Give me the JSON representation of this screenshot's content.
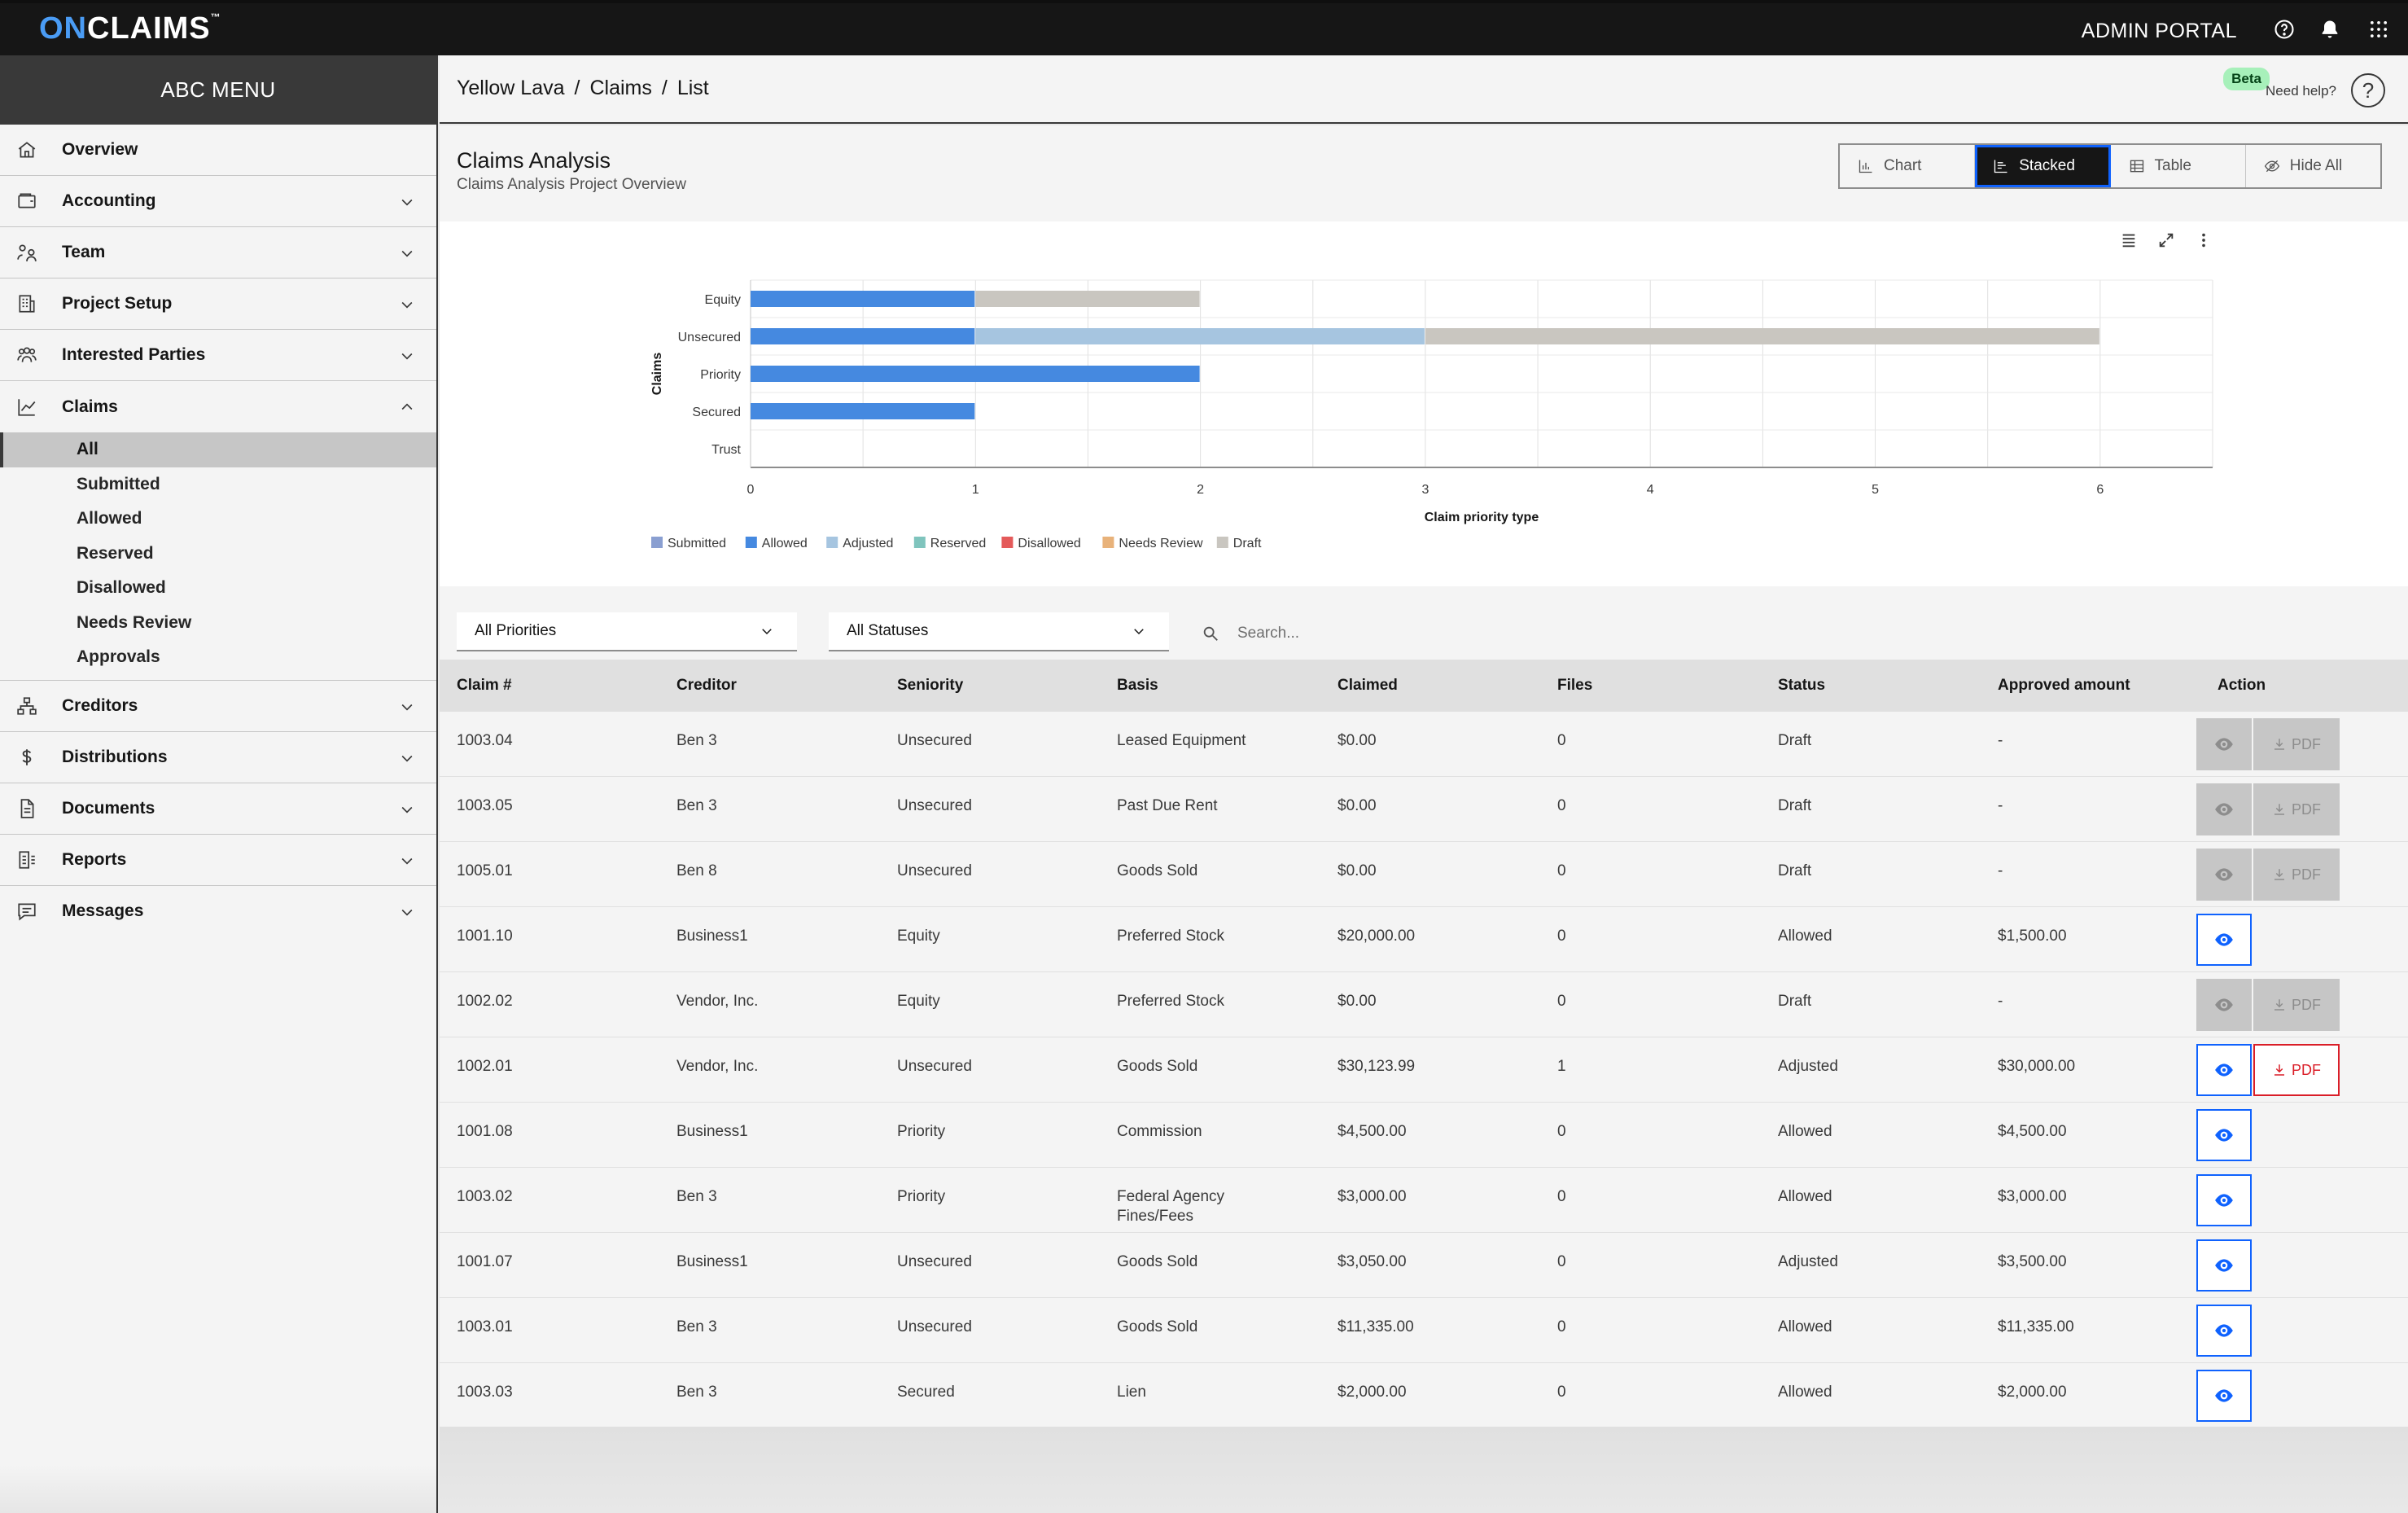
{
  "topbar": {
    "logo_on": "ON",
    "logo_rest": "CLAIMS",
    "logo_tm": "™",
    "portal_label": "ADMIN PORTAL",
    "icons": [
      "help-icon",
      "notification-icon",
      "app-switcher-icon"
    ]
  },
  "sidebar": {
    "title": "ABC MENU",
    "items": [
      {
        "label": "Overview",
        "icon": "home-icon"
      },
      {
        "label": "Accounting",
        "icon": "wallet-icon"
      },
      {
        "label": "Team",
        "icon": "team-icon"
      },
      {
        "label": "Project Setup",
        "icon": "building-icon"
      },
      {
        "label": "Interested Parties",
        "icon": "users-icon"
      },
      {
        "label": "Claims",
        "icon": "chart-line-icon"
      },
      {
        "label": "Creditors",
        "icon": "tree-icon"
      },
      {
        "label": "Distributions",
        "icon": "dollar-icon"
      },
      {
        "label": "Documents",
        "icon": "document-icon"
      },
      {
        "label": "Reports",
        "icon": "report-icon"
      },
      {
        "label": "Messages",
        "icon": "chat-icon"
      }
    ],
    "claims_sub": [
      "All",
      "Submitted",
      "Allowed",
      "Reserved",
      "Disallowed",
      "Needs Review",
      "Approvals"
    ],
    "active_sub": "All"
  },
  "breadcrumb": {
    "items": [
      "Yellow Lava",
      "Claims",
      "List"
    ],
    "sep": "/",
    "beta": "Beta",
    "need_help": "Need help?",
    "help_symbol": "?"
  },
  "section": {
    "title": "Claims Analysis",
    "subtitle": "Claims Analysis Project Overview"
  },
  "view_switch": {
    "options": [
      "Chart",
      "Stacked",
      "Table",
      "Hide All"
    ],
    "active": "Stacked"
  },
  "chart_data": {
    "type": "bar",
    "orientation": "horizontal",
    "stacked": true,
    "title": "",
    "xlabel": "Claim priority type",
    "ylabel": "Claims",
    "xlim": [
      0,
      6.5
    ],
    "xticks": [
      0,
      1,
      2,
      3,
      4,
      5,
      6
    ],
    "categories": [
      "Equity",
      "Unsecured",
      "Priority",
      "Secured",
      "Trust"
    ],
    "series": [
      {
        "name": "Submitted",
        "color": "#8a9fd1",
        "values": [
          0,
          0,
          0,
          0,
          0
        ]
      },
      {
        "name": "Allowed",
        "color": "#4589e0",
        "values": [
          1,
          1,
          2,
          1,
          0
        ]
      },
      {
        "name": "Adjusted",
        "color": "#a6c5e0",
        "values": [
          0,
          2,
          0,
          0,
          0
        ]
      },
      {
        "name": "Reserved",
        "color": "#7fc4bd",
        "values": [
          0,
          0,
          0,
          0,
          0
        ]
      },
      {
        "name": "Disallowed",
        "color": "#e45a5a",
        "values": [
          0,
          0,
          0,
          0,
          0
        ]
      },
      {
        "name": "Needs Review",
        "color": "#e8b27a",
        "values": [
          0,
          0,
          0,
          0,
          0
        ]
      },
      {
        "name": "Draft",
        "color": "#c9c6c0",
        "values": [
          1,
          3,
          0,
          0,
          0
        ]
      }
    ],
    "legend_position": "bottom-left",
    "grid": true
  },
  "filters": {
    "priority": "All Priorities",
    "status": "All Statuses",
    "search_placeholder": "Search..."
  },
  "table": {
    "headers": [
      "Claim #",
      "Creditor",
      "Seniority",
      "Basis",
      "Claimed",
      "Files",
      "Status",
      "Approved amount",
      "Action"
    ],
    "rows": [
      {
        "claim": "1003.04",
        "creditor": "Ben 3",
        "seniority": "Unsecured",
        "basis": "Leased Equipment",
        "claimed": "$0.00",
        "files": "0",
        "status": "Draft",
        "approved": "-",
        "eye": "off",
        "pdf": "off"
      },
      {
        "claim": "1003.05",
        "creditor": "Ben 3",
        "seniority": "Unsecured",
        "basis": "Past Due Rent",
        "claimed": "$0.00",
        "files": "0",
        "status": "Draft",
        "approved": "-",
        "eye": "off",
        "pdf": "off"
      },
      {
        "claim": "1005.01",
        "creditor": "Ben 8",
        "seniority": "Unsecured",
        "basis": "Goods Sold",
        "claimed": "$0.00",
        "files": "0",
        "status": "Draft",
        "approved": "-",
        "eye": "off",
        "pdf": "off"
      },
      {
        "claim": "1001.10",
        "creditor": "Business1",
        "seniority": "Equity",
        "basis": "Preferred Stock",
        "claimed": "$20,000.00",
        "files": "0",
        "status": "Allowed",
        "approved": "$1,500.00",
        "eye": "on",
        "pdf": "none"
      },
      {
        "claim": "1002.02",
        "creditor": "Vendor, Inc.",
        "seniority": "Equity",
        "basis": "Preferred Stock",
        "claimed": "$0.00",
        "files": "0",
        "status": "Draft",
        "approved": "-",
        "eye": "off",
        "pdf": "off"
      },
      {
        "claim": "1002.01",
        "creditor": "Vendor, Inc.",
        "seniority": "Unsecured",
        "basis": "Goods Sold",
        "claimed": "$30,123.99",
        "files": "1",
        "status": "Adjusted",
        "approved": "$30,000.00",
        "eye": "on",
        "pdf": "on"
      },
      {
        "claim": "1001.08",
        "creditor": "Business1",
        "seniority": "Priority",
        "basis": "Commission",
        "claimed": "$4,500.00",
        "files": "0",
        "status": "Allowed",
        "approved": "$4,500.00",
        "eye": "on",
        "pdf": "none"
      },
      {
        "claim": "1003.02",
        "creditor": "Ben 3",
        "seniority": "Priority",
        "basis": "Federal Agency Fines/Fees",
        "claimed": "$3,000.00",
        "files": "0",
        "status": "Allowed",
        "approved": "$3,000.00",
        "eye": "on",
        "pdf": "none"
      },
      {
        "claim": "1001.07",
        "creditor": "Business1",
        "seniority": "Unsecured",
        "basis": "Goods Sold",
        "claimed": "$3,050.00",
        "files": "0",
        "status": "Adjusted",
        "approved": "$3,500.00",
        "eye": "on",
        "pdf": "none"
      },
      {
        "claim": "1003.01",
        "creditor": "Ben 3",
        "seniority": "Unsecured",
        "basis": "Goods Sold",
        "claimed": "$11,335.00",
        "files": "0",
        "status": "Allowed",
        "approved": "$11,335.00",
        "eye": "on",
        "pdf": "none"
      },
      {
        "claim": "1003.03",
        "creditor": "Ben 3",
        "seniority": "Secured",
        "basis": "Lien",
        "claimed": "$2,000.00",
        "files": "0",
        "status": "Allowed",
        "approved": "$2,000.00",
        "eye": "on",
        "pdf": "none"
      }
    ],
    "pdf_label": "PDF"
  }
}
